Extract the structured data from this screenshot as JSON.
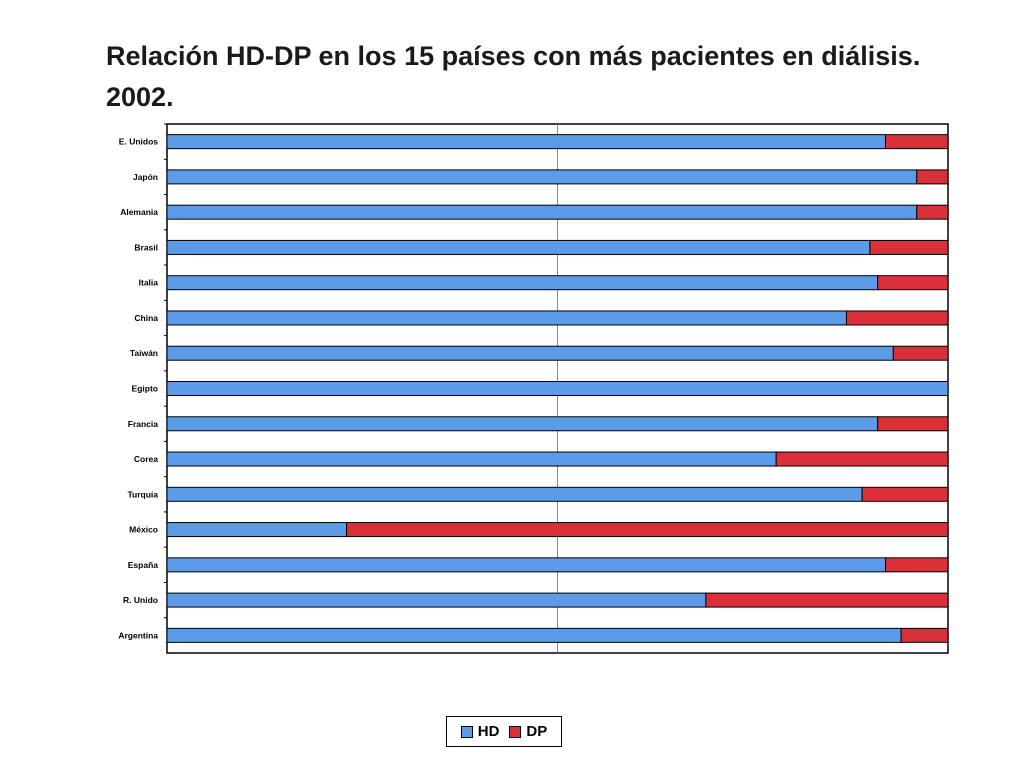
{
  "title": "Relación HD-DP en los 15 países con más pacientes en diálisis. 2002.",
  "chart_data": {
    "type": "bar",
    "orientation": "horizontal",
    "stacked": "percent",
    "title": "Relación HD-DP en los 15 países con más pacientes en diálisis. 2002.",
    "xlabel": "",
    "ylabel": "",
    "xlim": [
      0,
      100
    ],
    "grid": "vertical line at 50%",
    "legend_position": "bottom-center",
    "categories": [
      "E. Unidos",
      "Japón",
      "Alemania",
      "Brasil",
      "Italia",
      "China",
      "Taiwán",
      "Egipto",
      "Francia",
      "Corea",
      "Turquía",
      "México",
      "España",
      "R. Unido",
      "Argentina"
    ],
    "series": [
      {
        "name": "HD",
        "color": "#5B9BE8",
        "values": [
          92,
          96,
          96,
          90,
          91,
          87,
          93,
          100,
          91,
          78,
          89,
          23,
          92,
          69,
          94
        ]
      },
      {
        "name": "DP",
        "color": "#D9303A",
        "values": [
          8,
          4,
          4,
          10,
          9,
          13,
          7,
          0,
          9,
          22,
          11,
          77,
          8,
          31,
          6
        ]
      }
    ]
  }
}
